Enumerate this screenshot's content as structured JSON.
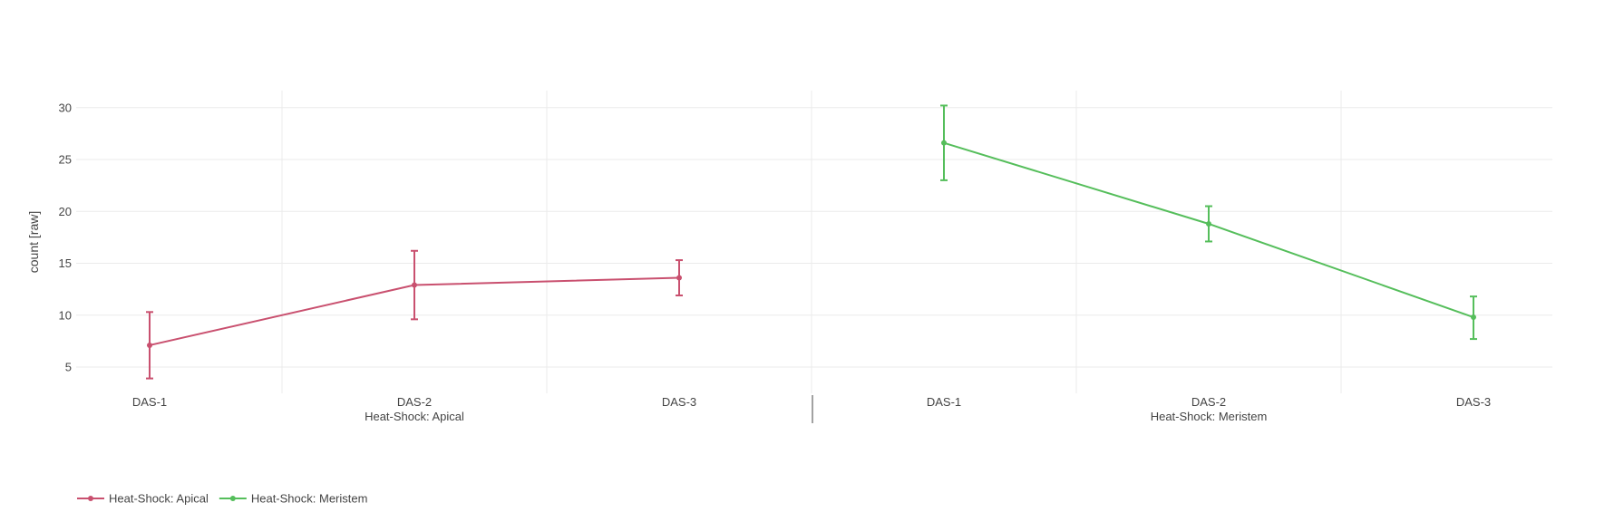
{
  "chart_data": {
    "type": "line",
    "xlabel": "",
    "ylabel": "count [raw]",
    "ylim": [
      2.5,
      31.5
    ],
    "yticks": [
      5,
      10,
      15,
      20,
      25,
      30
    ],
    "grid": true,
    "legend_placement": "bottom-left",
    "error_bars": true,
    "groups": [
      {
        "label": "Heat-Shock: Apical",
        "categories": [
          "DAS-1",
          "DAS-2",
          "DAS-3"
        ]
      },
      {
        "label": "Heat-Shock: Meristem",
        "categories": [
          "DAS-1",
          "DAS-2",
          "DAS-3"
        ]
      }
    ],
    "series": [
      {
        "name": "Heat-Shock: Apical",
        "color": "#c9506f",
        "group": 0,
        "x": [
          "DAS-1",
          "DAS-2",
          "DAS-3"
        ],
        "y": [
          7.1,
          12.9,
          13.6
        ],
        "err_low": [
          3.9,
          9.6,
          11.9
        ],
        "err_high": [
          10.3,
          16.2,
          15.3
        ]
      },
      {
        "name": "Heat-Shock: Meristem",
        "color": "#55be5b",
        "group": 1,
        "x": [
          "DAS-1",
          "DAS-2",
          "DAS-3"
        ],
        "y": [
          26.6,
          18.8,
          9.8
        ],
        "err_low": [
          23.0,
          17.1,
          7.7
        ],
        "err_high": [
          30.2,
          20.5,
          11.8
        ]
      }
    ]
  }
}
